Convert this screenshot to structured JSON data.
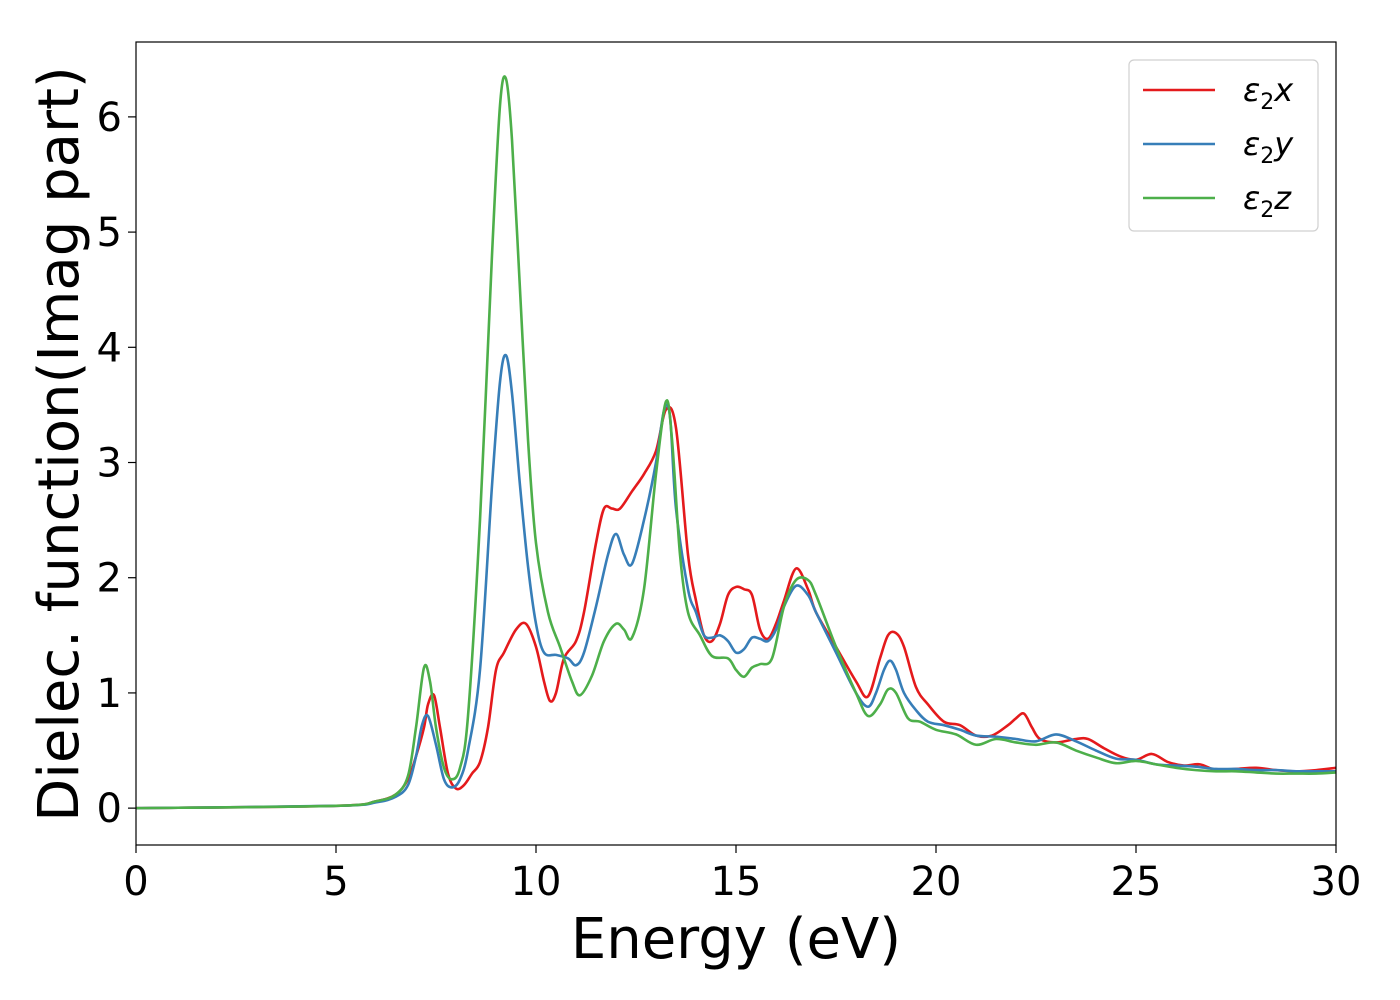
{
  "chart_data": {
    "type": "line",
    "xlabel": "Energy (eV)",
    "ylabel": "Dielec. function(Imag part)",
    "xlim": [
      0,
      30
    ],
    "ylim": [
      -0.32,
      6.65
    ],
    "xticks": [
      0,
      5,
      10,
      15,
      20,
      25,
      30
    ],
    "yticks": [
      0,
      1,
      2,
      3,
      4,
      5,
      6
    ],
    "grid": false,
    "legend_position": "top-right",
    "series": [
      {
        "name": "ε₂x",
        "legend_main": "ε",
        "legend_sub": "2",
        "legend_suffix": "x",
        "color": "#e41a1c",
        "x": [
          0,
          5,
          6,
          6.5,
          6.8,
          7.0,
          7.2,
          7.3,
          7.45,
          7.6,
          7.8,
          8.0,
          8.2,
          8.4,
          8.6,
          8.8,
          9.0,
          9.2,
          9.5,
          9.75,
          10.0,
          10.2,
          10.35,
          10.5,
          10.7,
          11.0,
          11.2,
          11.5,
          11.7,
          11.9,
          12.1,
          12.4,
          12.7,
          13.0,
          13.25,
          13.5,
          13.8,
          14.0,
          14.2,
          14.4,
          14.6,
          14.8,
          15.0,
          15.2,
          15.4,
          15.6,
          15.8,
          16.0,
          16.2,
          16.5,
          16.8,
          17.0,
          17.5,
          18.0,
          18.3,
          18.6,
          18.8,
          19.0,
          19.2,
          19.5,
          19.8,
          20.2,
          20.6,
          21.0,
          21.4,
          21.8,
          22.0,
          22.2,
          22.4,
          22.6,
          23.0,
          23.5,
          23.8,
          24.2,
          24.6,
          25.0,
          25.4,
          25.8,
          26.2,
          26.6,
          27.0,
          27.5,
          28.0,
          28.5,
          29.0,
          29.5,
          30.0
        ],
        "values": [
          0,
          0.02,
          0.06,
          0.12,
          0.25,
          0.45,
          0.7,
          0.9,
          0.98,
          0.7,
          0.3,
          0.17,
          0.2,
          0.3,
          0.4,
          0.7,
          1.2,
          1.35,
          1.55,
          1.6,
          1.4,
          1.1,
          0.93,
          1.0,
          1.3,
          1.45,
          1.7,
          2.3,
          2.6,
          2.6,
          2.6,
          2.75,
          2.9,
          3.1,
          3.46,
          3.3,
          2.2,
          1.8,
          1.5,
          1.45,
          1.6,
          1.85,
          1.92,
          1.9,
          1.85,
          1.55,
          1.47,
          1.6,
          1.8,
          2.08,
          1.9,
          1.7,
          1.4,
          1.1,
          0.97,
          1.3,
          1.5,
          1.52,
          1.4,
          1.05,
          0.9,
          0.75,
          0.72,
          0.63,
          0.63,
          0.72,
          0.78,
          0.82,
          0.7,
          0.6,
          0.57,
          0.6,
          0.6,
          0.52,
          0.45,
          0.42,
          0.47,
          0.4,
          0.37,
          0.38,
          0.33,
          0.34,
          0.35,
          0.33,
          0.32,
          0.33,
          0.35
        ]
      },
      {
        "name": "ε₂y",
        "legend_main": "ε",
        "legend_sub": "2",
        "legend_suffix": "y",
        "color": "#377eb8",
        "x": [
          0,
          5,
          6,
          6.5,
          6.8,
          7.0,
          7.15,
          7.3,
          7.5,
          7.7,
          7.9,
          8.1,
          8.3,
          8.6,
          8.9,
          9.1,
          9.25,
          9.4,
          9.6,
          9.8,
          10.0,
          10.2,
          10.5,
          10.8,
          11.0,
          11.2,
          11.5,
          11.8,
          12.0,
          12.2,
          12.4,
          12.7,
          13.0,
          13.2,
          13.35,
          13.5,
          13.8,
          14.0,
          14.2,
          14.4,
          14.6,
          14.8,
          15.0,
          15.2,
          15.4,
          15.6,
          15.8,
          16.0,
          16.2,
          16.5,
          16.8,
          17.0,
          17.5,
          18.0,
          18.3,
          18.5,
          18.7,
          18.85,
          19.0,
          19.2,
          19.5,
          19.8,
          20.2,
          20.6,
          21.0,
          21.5,
          22.0,
          22.5,
          23.0,
          23.5,
          24.0,
          24.5,
          25.0,
          25.5,
          26.0,
          26.5,
          27.0,
          27.5,
          28.0,
          28.5,
          29.0,
          29.5,
          30.0
        ],
        "values": [
          0,
          0.02,
          0.05,
          0.1,
          0.2,
          0.45,
          0.72,
          0.8,
          0.55,
          0.25,
          0.18,
          0.25,
          0.5,
          1.2,
          2.8,
          3.7,
          3.93,
          3.6,
          2.8,
          2.1,
          1.6,
          1.35,
          1.33,
          1.3,
          1.24,
          1.35,
          1.75,
          2.2,
          2.38,
          2.2,
          2.12,
          2.5,
          3.0,
          3.45,
          3.4,
          2.6,
          1.9,
          1.7,
          1.5,
          1.48,
          1.5,
          1.45,
          1.35,
          1.38,
          1.48,
          1.47,
          1.45,
          1.55,
          1.75,
          1.93,
          1.85,
          1.7,
          1.35,
          1.0,
          0.88,
          1.0,
          1.2,
          1.28,
          1.2,
          1.0,
          0.85,
          0.75,
          0.72,
          0.68,
          0.63,
          0.62,
          0.6,
          0.58,
          0.64,
          0.58,
          0.5,
          0.43,
          0.42,
          0.38,
          0.37,
          0.36,
          0.34,
          0.34,
          0.33,
          0.33,
          0.32,
          0.32,
          0.32
        ]
      },
      {
        "name": "ε₂z",
        "legend_main": "ε",
        "legend_sub": "2",
        "legend_suffix": "z",
        "color": "#4daf4a",
        "x": [
          0,
          5,
          6,
          6.5,
          6.8,
          7.0,
          7.2,
          7.35,
          7.5,
          7.7,
          7.9,
          8.1,
          8.3,
          8.6,
          8.9,
          9.1,
          9.25,
          9.4,
          9.6,
          9.8,
          10.0,
          10.3,
          10.6,
          10.9,
          11.1,
          11.4,
          11.7,
          12.0,
          12.2,
          12.4,
          12.7,
          13.0,
          13.25,
          13.4,
          13.6,
          13.8,
          14.1,
          14.4,
          14.8,
          15.0,
          15.2,
          15.4,
          15.6,
          15.9,
          16.2,
          16.5,
          16.8,
          17.0,
          17.5,
          18.0,
          18.3,
          18.6,
          18.8,
          19.0,
          19.3,
          19.6,
          20.0,
          20.5,
          21.0,
          21.5,
          22.0,
          22.5,
          23.0,
          23.5,
          24.0,
          24.5,
          25.0,
          25.5,
          26.0,
          26.5,
          27.0,
          27.5,
          28.0,
          28.5,
          29.0,
          29.5,
          30.0
        ],
        "values": [
          0,
          0.02,
          0.06,
          0.12,
          0.28,
          0.7,
          1.22,
          1.1,
          0.7,
          0.35,
          0.25,
          0.35,
          0.8,
          2.5,
          4.8,
          6.1,
          6.33,
          5.8,
          4.5,
          3.2,
          2.3,
          1.7,
          1.4,
          1.1,
          0.98,
          1.15,
          1.45,
          1.6,
          1.55,
          1.48,
          1.9,
          2.9,
          3.53,
          3.2,
          2.2,
          1.7,
          1.5,
          1.32,
          1.3,
          1.2,
          1.14,
          1.22,
          1.25,
          1.3,
          1.75,
          1.98,
          1.98,
          1.85,
          1.4,
          1.0,
          0.8,
          0.9,
          1.03,
          1.0,
          0.78,
          0.75,
          0.68,
          0.64,
          0.55,
          0.6,
          0.57,
          0.55,
          0.57,
          0.5,
          0.44,
          0.39,
          0.41,
          0.38,
          0.35,
          0.33,
          0.32,
          0.32,
          0.31,
          0.3,
          0.3,
          0.3,
          0.31
        ]
      }
    ]
  }
}
